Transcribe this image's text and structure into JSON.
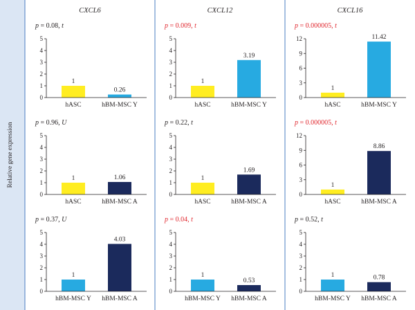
{
  "y_axis_label": "Relative gene expression",
  "columns": [
    {
      "title": "CXCL6",
      "title_italic_part": "CXCL",
      "title_plain_part": "6"
    },
    {
      "title": "CXCL12",
      "title_italic_part": "CXCL",
      "title_plain_part": "12"
    },
    {
      "title": "CXCL16",
      "title_italic_part": "CXCL",
      "title_plain_part": "16"
    }
  ],
  "colors": {
    "hASC": "#ffed21",
    "hBM-MSC Y": "#27aae1",
    "hBM-MSC A": "#1b2a5c",
    "significant_p": "#e0262d",
    "panel_border": "#4a7cc0",
    "label_strip": "#dbe6f4"
  },
  "chart_data": [
    {
      "type": "bar",
      "row": 0,
      "col": 0,
      "p_label": "p = 0.08, t",
      "p_value": "0.08",
      "test": "t",
      "significant": false,
      "categories": [
        "hASC",
        "hBM-MSC Y"
      ],
      "values": [
        1,
        0.26
      ],
      "value_labels": [
        "1",
        "0.26"
      ],
      "bar_colors": [
        "#ffed21",
        "#27aae1"
      ],
      "ylim": [
        0,
        5
      ],
      "yticks": [
        0,
        1,
        2,
        3,
        4,
        5
      ]
    },
    {
      "type": "bar",
      "row": 0,
      "col": 1,
      "p_label": "p = 0.009, t",
      "p_value": "0.009",
      "test": "t",
      "significant": true,
      "categories": [
        "hASC",
        "hBM-MSC Y"
      ],
      "values": [
        1,
        3.19
      ],
      "value_labels": [
        "1",
        "3.19"
      ],
      "bar_colors": [
        "#ffed21",
        "#27aae1"
      ],
      "ylim": [
        0,
        5
      ],
      "yticks": [
        0,
        1,
        2,
        3,
        4,
        5
      ]
    },
    {
      "type": "bar",
      "row": 0,
      "col": 2,
      "p_label": "p = 0.000005, t",
      "p_value": "0.000005",
      "test": "t",
      "significant": true,
      "categories": [
        "hASC",
        "hBM-MSC Y"
      ],
      "values": [
        1,
        11.42
      ],
      "value_labels": [
        "1",
        "11.42"
      ],
      "bar_colors": [
        "#ffed21",
        "#27aae1"
      ],
      "ylim": [
        0,
        12
      ],
      "yticks": [
        0,
        3,
        6,
        9,
        12
      ]
    },
    {
      "type": "bar",
      "row": 1,
      "col": 0,
      "p_label": "p = 0.96, U",
      "p_value": "0.96",
      "test": "U",
      "significant": false,
      "categories": [
        "hASC",
        "hBM-MSC A"
      ],
      "values": [
        1,
        1.06
      ],
      "value_labels": [
        "1",
        "1.06"
      ],
      "bar_colors": [
        "#ffed21",
        "#1b2a5c"
      ],
      "ylim": [
        0,
        5
      ],
      "yticks": [
        0,
        1,
        2,
        3,
        4,
        5
      ]
    },
    {
      "type": "bar",
      "row": 1,
      "col": 1,
      "p_label": "p = 0.22, t",
      "p_value": "0.22",
      "test": "t",
      "significant": false,
      "categories": [
        "hASC",
        "hBM-MSC A"
      ],
      "values": [
        1,
        1.69
      ],
      "value_labels": [
        "1",
        "1.69"
      ],
      "bar_colors": [
        "#ffed21",
        "#1b2a5c"
      ],
      "ylim": [
        0,
        5
      ],
      "yticks": [
        0,
        1,
        2,
        3,
        4,
        5
      ]
    },
    {
      "type": "bar",
      "row": 1,
      "col": 2,
      "p_label": "p = 0.000005, t",
      "p_value": "0.000005",
      "test": "t",
      "significant": true,
      "categories": [
        "hASC",
        "hBM-MSC A"
      ],
      "values": [
        1,
        8.86
      ],
      "value_labels": [
        "1",
        "8.86"
      ],
      "bar_colors": [
        "#ffed21",
        "#1b2a5c"
      ],
      "ylim": [
        0,
        12
      ],
      "yticks": [
        0,
        3,
        6,
        9,
        12
      ]
    },
    {
      "type": "bar",
      "row": 2,
      "col": 0,
      "p_label": "p = 0.37, U",
      "p_value": "0.37",
      "test": "U",
      "significant": false,
      "categories": [
        "hBM-MSC Y",
        "hBM-MSC A"
      ],
      "values": [
        1,
        4.03
      ],
      "value_labels": [
        "1",
        "4.03"
      ],
      "bar_colors": [
        "#27aae1",
        "#1b2a5c"
      ],
      "ylim": [
        0,
        5
      ],
      "yticks": [
        0,
        1,
        2,
        3,
        4,
        5
      ]
    },
    {
      "type": "bar",
      "row": 2,
      "col": 1,
      "p_label": "p = 0.04, t",
      "p_value": "0.04",
      "test": "t",
      "significant": true,
      "categories": [
        "hBM-MSC Y",
        "hBM-MSC A"
      ],
      "values": [
        1,
        0.53
      ],
      "value_labels": [
        "1",
        "0.53"
      ],
      "bar_colors": [
        "#27aae1",
        "#1b2a5c"
      ],
      "ylim": [
        0,
        5
      ],
      "yticks": [
        0,
        1,
        2,
        3,
        4,
        5
      ]
    },
    {
      "type": "bar",
      "row": 2,
      "col": 2,
      "p_label": "p = 0.52, t",
      "p_value": "0.52",
      "test": "t",
      "significant": false,
      "categories": [
        "hBM-MSC Y",
        "hBM-MSC A"
      ],
      "values": [
        1,
        0.78
      ],
      "value_labels": [
        "1",
        "0.78"
      ],
      "bar_colors": [
        "#27aae1",
        "#1b2a5c"
      ],
      "ylim": [
        0,
        5
      ],
      "yticks": [
        0,
        1,
        2,
        3,
        4,
        5
      ]
    }
  ]
}
